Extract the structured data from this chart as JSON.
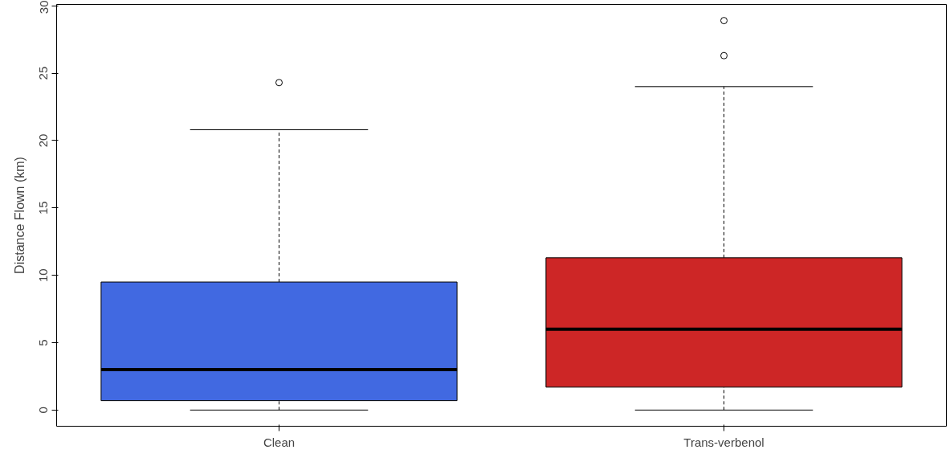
{
  "chart_data": {
    "type": "box",
    "ylabel": "Distance Flown (km)",
    "categories": [
      "Clean",
      "Trans-verbenol"
    ],
    "boxes": [
      {
        "low": 0,
        "q1": 0.7,
        "median": 3.0,
        "q3": 9.5,
        "high": 20.8,
        "outliers": [
          24.3
        ]
      },
      {
        "low": 0,
        "q1": 1.7,
        "median": 6.0,
        "q3": 11.3,
        "high": 24.0,
        "outliers": [
          26.3,
          28.9
        ]
      }
    ],
    "colors": [
      "#4169e1",
      "#cd2626"
    ],
    "ylim": [
      -1.2,
      30.1
    ],
    "yticks": [
      0,
      5,
      10,
      15,
      20,
      25,
      30
    ],
    "grid": false
  }
}
